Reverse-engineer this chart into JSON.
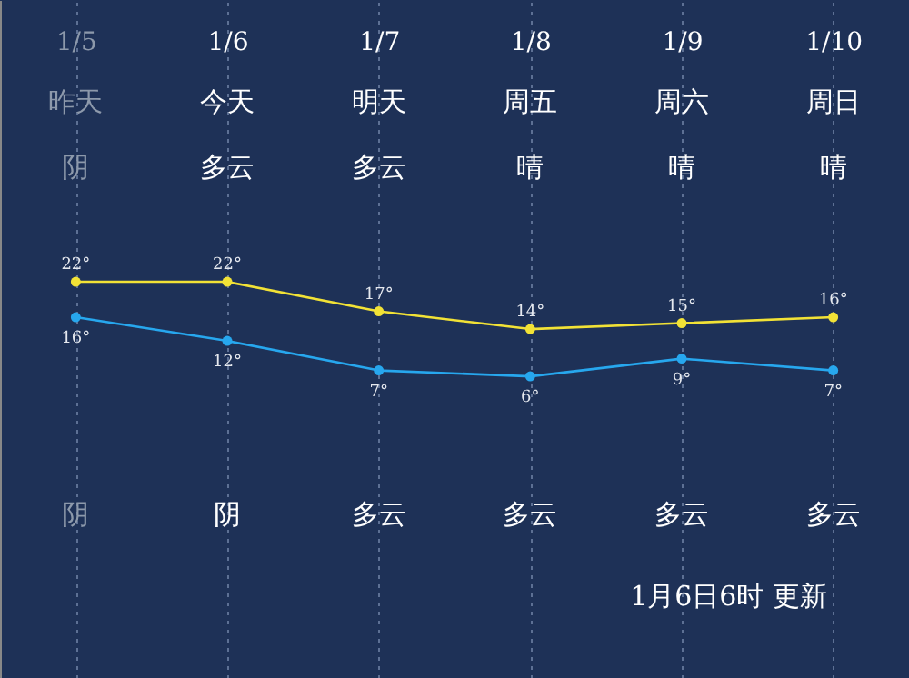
{
  "chart_data": {
    "type": "line",
    "categories": [
      "1/5",
      "1/6",
      "1/7",
      "1/8",
      "1/9",
      "1/10"
    ],
    "series": [
      {
        "color": "#f2e236",
        "values": [
          22,
          22,
          17,
          14,
          15,
          16
        ],
        "value_labels": [
          "22°",
          "22°",
          "17°",
          "14°",
          "15°",
          "16°"
        ]
      },
      {
        "color": "#27a7ee",
        "values": [
          16,
          12,
          7,
          6,
          9,
          7
        ],
        "value_labels": [
          "16°",
          "12°",
          "7°",
          "6°",
          "9°",
          "7°"
        ]
      }
    ],
    "marker": "circle",
    "grid": "x",
    "annotations": [
      "昨天",
      "今天",
      "明天",
      "周五",
      "周六",
      "周日",
      "阴",
      "多云",
      "多云",
      "晴",
      "晴",
      "晴",
      "阴",
      "阴",
      "多云",
      "多云",
      "多云",
      "多云",
      "1月6日6时 更新"
    ]
  }
}
